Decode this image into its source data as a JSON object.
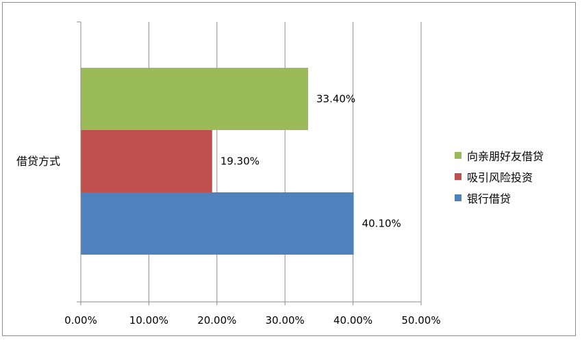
{
  "chart_data": {
    "type": "bar",
    "orientation": "horizontal",
    "categories": [
      "借贷方式"
    ],
    "series": [
      {
        "name": "银行借贷",
        "value": 40.1,
        "label": "40.10%",
        "color": "#4F81BD"
      },
      {
        "name": "吸引风险投资",
        "value": 19.3,
        "label": "19.30%",
        "color": "#C0504D"
      },
      {
        "name": "向亲朋好友借贷",
        "value": 33.4,
        "label": "33.40%",
        "color": "#9BBB59"
      }
    ],
    "xlim": [
      0,
      50
    ],
    "xticks": [
      0,
      10,
      20,
      30,
      40,
      50
    ],
    "xtick_labels": [
      "0.00%",
      "10.00%",
      "20.00%",
      "30.00%",
      "40.00%",
      "50.00%"
    ],
    "grid": true,
    "legend_position": "right",
    "legend_order": [
      "向亲朋好友借贷",
      "吸引风险投资",
      "银行借贷"
    ]
  }
}
